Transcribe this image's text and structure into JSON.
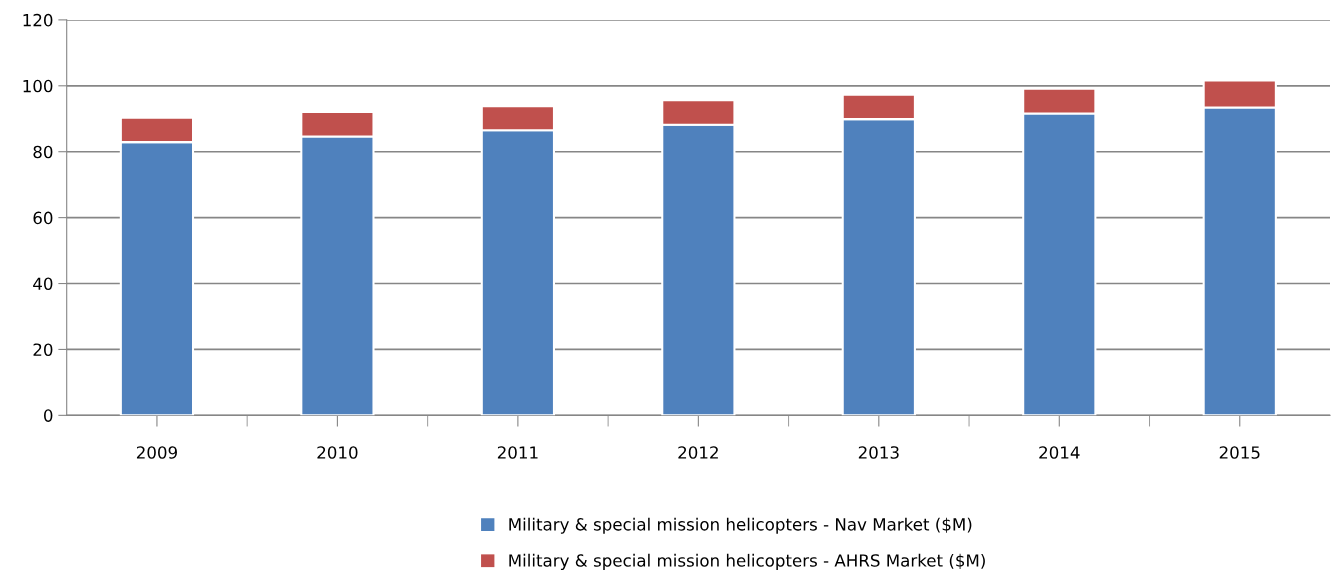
{
  "chart_data": {
    "type": "bar",
    "stacked": true,
    "categories": [
      "2009",
      "2010",
      "2011",
      "2012",
      "2013",
      "2014",
      "2015"
    ],
    "series": [
      {
        "name": "Military & special mission helicopters - Nav Market ($M)",
        "color": "#4f81bd",
        "values": [
          82.9,
          84.6,
          86.5,
          88.2,
          89.9,
          91.6,
          93.4
        ]
      },
      {
        "name": "Military & special mission helicopters - AHRS Market ($M)",
        "color": "#c0504d",
        "values": [
          7.4,
          7.5,
          7.3,
          7.4,
          7.4,
          7.5,
          8.2
        ]
      }
    ],
    "ylim": [
      0,
      120
    ],
    "yticks": [
      0,
      20,
      40,
      60,
      80,
      100,
      120
    ],
    "grid": "y",
    "legend": "bottom"
  }
}
